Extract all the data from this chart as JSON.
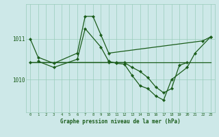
{
  "xlabel": "Graphe pression niveau de la mer (hPa)",
  "bg_color": "#cde8e8",
  "grid_color": "#99ccbb",
  "line_color": "#1a5c1a",
  "hours": [
    0,
    1,
    2,
    3,
    4,
    5,
    6,
    7,
    8,
    9,
    10,
    11,
    12,
    13,
    14,
    15,
    16,
    17,
    18,
    19,
    20,
    21,
    22,
    23
  ],
  "series1": [
    1011.0,
    1010.55,
    null,
    1010.4,
    null,
    null,
    1010.65,
    1011.55,
    1011.55,
    1011.1,
    1010.65,
    null,
    null,
    null,
    null,
    null,
    null,
    null,
    null,
    null,
    null,
    null,
    1010.95,
    1011.05
  ],
  "series2": [
    null,
    1010.45,
    null,
    1010.3,
    null,
    null,
    1010.5,
    1011.25,
    null,
    1010.8,
    1010.45,
    1010.4,
    1010.38,
    1010.1,
    1009.85,
    1009.78,
    1009.6,
    1009.5,
    1010.0,
    null,
    1010.3,
    1010.65,
    null,
    1011.05
  ],
  "series3_x": [
    0,
    23
  ],
  "series3_y": [
    1010.42,
    1010.42
  ],
  "series4": [
    1010.42,
    null,
    null,
    null,
    null,
    null,
    null,
    null,
    null,
    null,
    1010.42,
    1010.42,
    1010.42,
    1010.3,
    1010.2,
    1010.05,
    1009.82,
    1009.68,
    1009.78,
    1010.35,
    1010.42,
    null,
    null,
    null
  ],
  "yticks": [
    1010,
    1011
  ],
  "ylim": [
    1009.2,
    1011.85
  ],
  "xlim": [
    -0.5,
    23.5
  ]
}
